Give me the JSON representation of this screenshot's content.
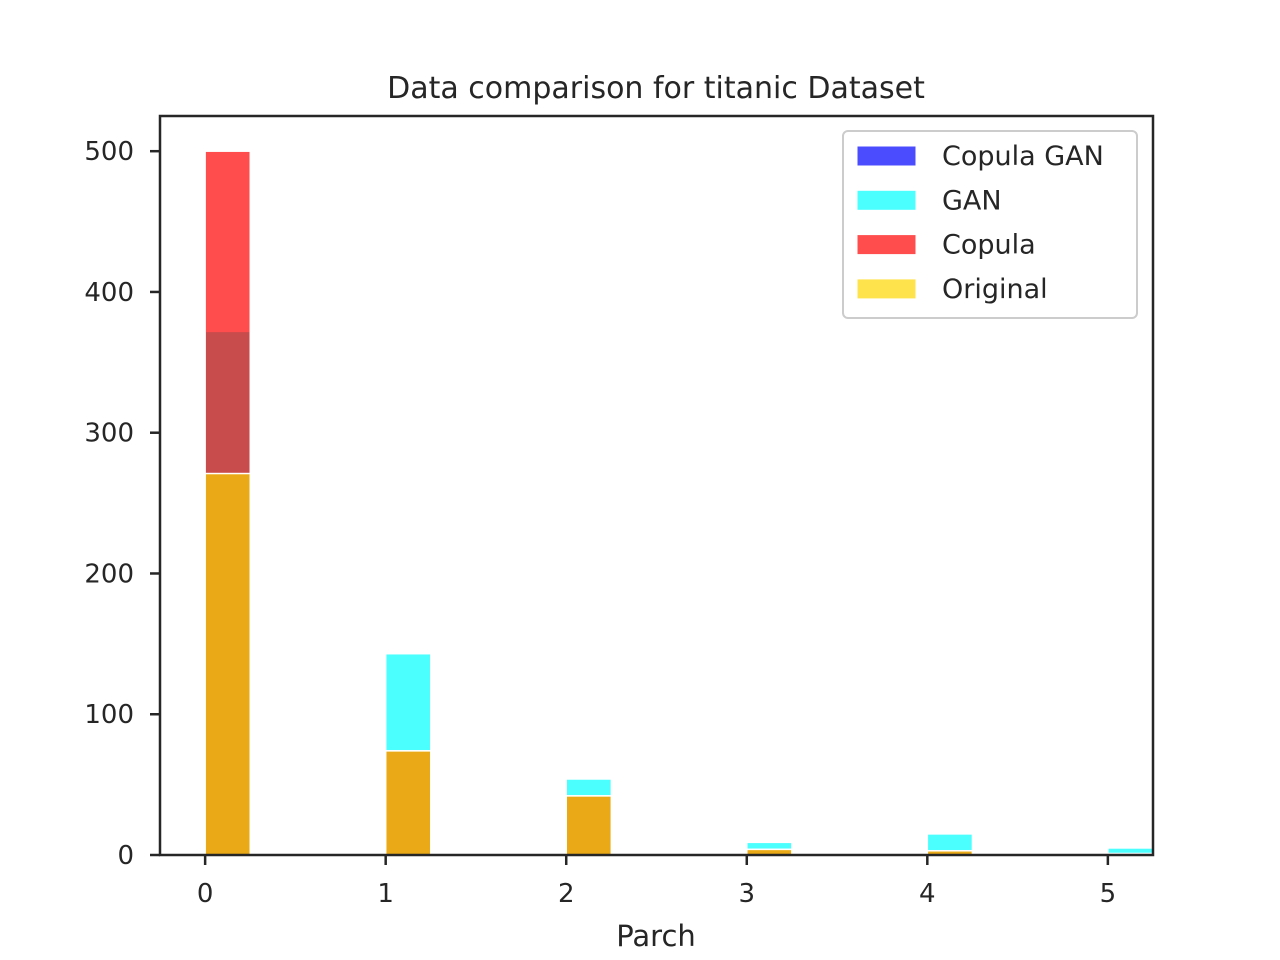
{
  "chart_data": {
    "type": "bar",
    "title": "Data comparison for titanic Dataset",
    "xlabel": "Parch",
    "ylabel": "",
    "xlim": [
      -0.25,
      5.25
    ],
    "ylim": [
      0,
      525
    ],
    "x_ticks": [
      "0",
      "1",
      "2",
      "3",
      "4",
      "5"
    ],
    "y_ticks": [
      "0",
      "100",
      "200",
      "300",
      "400",
      "500"
    ],
    "bin_width": 0.25,
    "grid": false,
    "legend_position": "top-right",
    "series": [
      {
        "name": "Copula GAN",
        "color": "#0000ff",
        "opacity": 0.7,
        "x": [
          0,
          1,
          2,
          3,
          4,
          5
        ],
        "values": [
          271,
          74,
          42,
          4,
          3,
          1
        ]
      },
      {
        "name": "GAN",
        "color": "#00ffff",
        "opacity": 0.7,
        "x": [
          0,
          1,
          2,
          3,
          4,
          5
        ],
        "values": [
          372,
          143,
          54,
          9,
          15,
          5
        ]
      },
      {
        "name": "Copula",
        "color": "#ff0000",
        "opacity": 0.7,
        "x": [
          0,
          1,
          2,
          3,
          4,
          5
        ],
        "values": [
          500,
          74,
          42,
          4,
          3,
          1
        ]
      },
      {
        "name": "Original",
        "color": "#ffd700",
        "opacity": 0.7,
        "x": [
          0,
          1,
          2,
          3,
          4,
          5
        ],
        "values": [
          271,
          74,
          42,
          4,
          3,
          1
        ]
      }
    ]
  }
}
